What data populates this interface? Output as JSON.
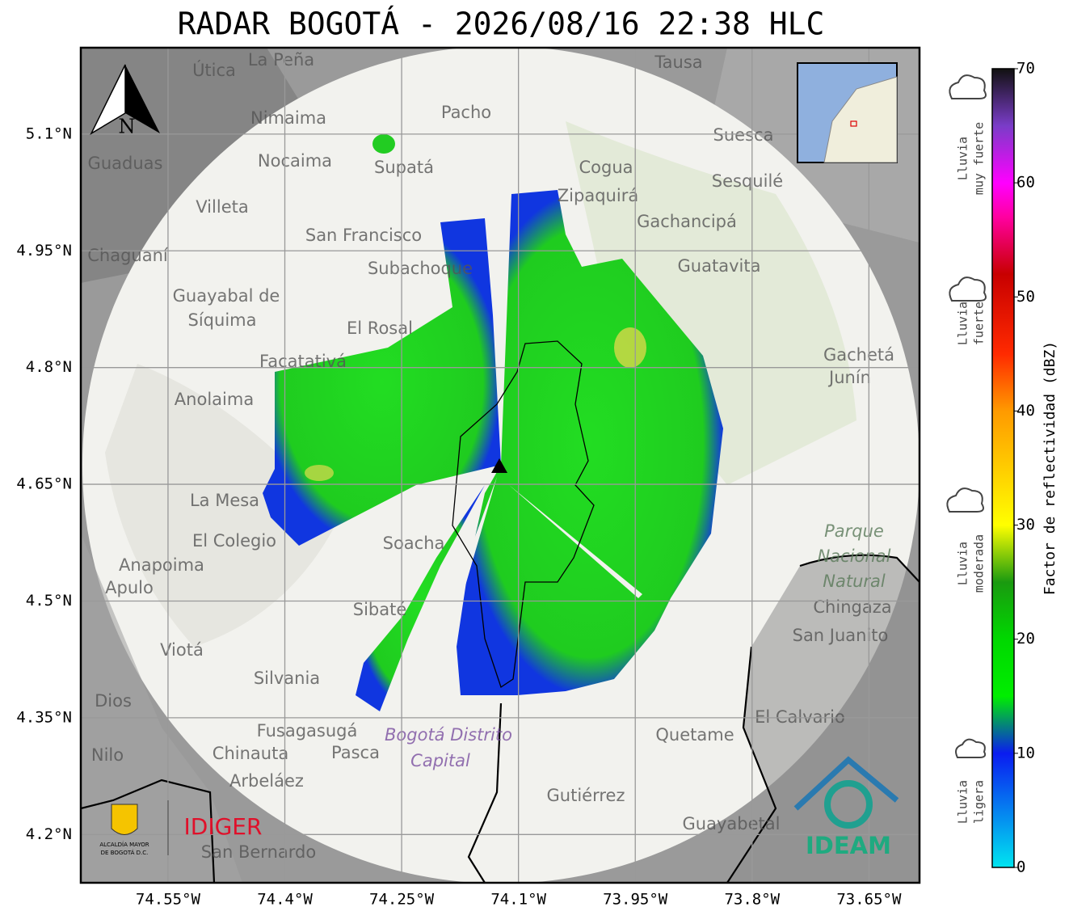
{
  "title": "RADAR BOGOTÁ - 2026/08/16 22:38 HLC",
  "map": {
    "xlim": [
      -74.662,
      -73.585
    ],
    "ylim": [
      4.138,
      5.211
    ],
    "xticks": [
      {
        "value": -74.55,
        "label": "74.55°W"
      },
      {
        "value": -74.4,
        "label": "74.4°W"
      },
      {
        "value": -74.25,
        "label": "74.25°W"
      },
      {
        "value": -74.1,
        "label": "74.1°W"
      },
      {
        "value": -73.95,
        "label": "73.95°W"
      },
      {
        "value": -73.8,
        "label": "73.8°W"
      },
      {
        "value": -73.65,
        "label": "73.65°W"
      }
    ],
    "yticks": [
      {
        "value": 5.1,
        "label": "5.1°N"
      },
      {
        "value": 4.95,
        "label": "4.95°N"
      },
      {
        "value": 4.8,
        "label": "4.8°N"
      },
      {
        "value": 4.65,
        "label": "4.65°N"
      },
      {
        "value": 4.5,
        "label": "4.5°N"
      },
      {
        "value": 4.35,
        "label": "4.35°N"
      },
      {
        "value": 4.2,
        "label": "4.2°N"
      }
    ],
    "grid": true,
    "north": "N",
    "places": [
      "La Peña",
      "Útica",
      "Tausa",
      "Pacho",
      "Nimaima",
      "Suesca",
      "Guaduas",
      "Nocaima",
      "Supatá",
      "Cogua",
      "Sesquilé",
      "Villeta",
      "Zipaquirá",
      "Gachancipá",
      "San Francisco",
      "Chaguaní",
      "Subachoque",
      "Guatavita",
      "Guayabal de",
      "Síquima",
      "El Rosal",
      "Facatativá",
      "Gachetá",
      "Junín",
      "Anolaima",
      "La Mesa",
      "El Colegio",
      "Soacha",
      "Anapoima",
      "Apulo",
      "Sibaté",
      "San Juanito",
      "Viotá",
      "Silvania",
      "El Calvario",
      "Fusagasugá",
      "Quetame",
      "Chinauta",
      "Pasca",
      "Nilo",
      "Arbeláez",
      "Gutiérrez",
      "Guayabetal",
      "San Bernardo",
      "Dios",
      "Chingaza"
    ],
    "district": [
      "Bogotá Distrito",
      "Capital"
    ],
    "park": [
      "Parque",
      "Nacional",
      "Natural"
    ]
  },
  "colorbar": {
    "label": "Factor de reflectividad (dBZ)",
    "lim": [
      0,
      70
    ],
    "ticks": [
      0,
      10,
      20,
      30,
      40,
      50,
      60,
      70
    ],
    "colormap": [
      {
        "value": 0,
        "color": "#00e5f0"
      },
      {
        "value": 10,
        "color": "#0a1cf0"
      },
      {
        "value": 15,
        "color": "#00ee00"
      },
      {
        "value": 20,
        "color": "#00d800"
      },
      {
        "value": 25,
        "color": "#1a9a10"
      },
      {
        "value": 30,
        "color": "#ffff00"
      },
      {
        "value": 40,
        "color": "#ff9a00"
      },
      {
        "value": 45,
        "color": "#ff2a00"
      },
      {
        "value": 52,
        "color": "#c80000"
      },
      {
        "value": 57,
        "color": "#ff00a0"
      },
      {
        "value": 60,
        "color": "#ff00ff"
      },
      {
        "value": 65,
        "color": "#7a3cc8"
      },
      {
        "value": 70,
        "color": "#111111"
      }
    ]
  },
  "rain": [
    [
      "Lluvia",
      "muy fuerte"
    ],
    [
      "Lluvia",
      "fuerte"
    ],
    [
      "Lluvia",
      "moderada"
    ],
    [
      "Lluvia",
      "ligera"
    ]
  ],
  "logos": {
    "idiger": "IDIGER",
    "ideam": "IDEAM",
    "alcaldia": [
      "ALCALDÍA MAYOR",
      "DE BOGOTÁ D.C."
    ]
  }
}
